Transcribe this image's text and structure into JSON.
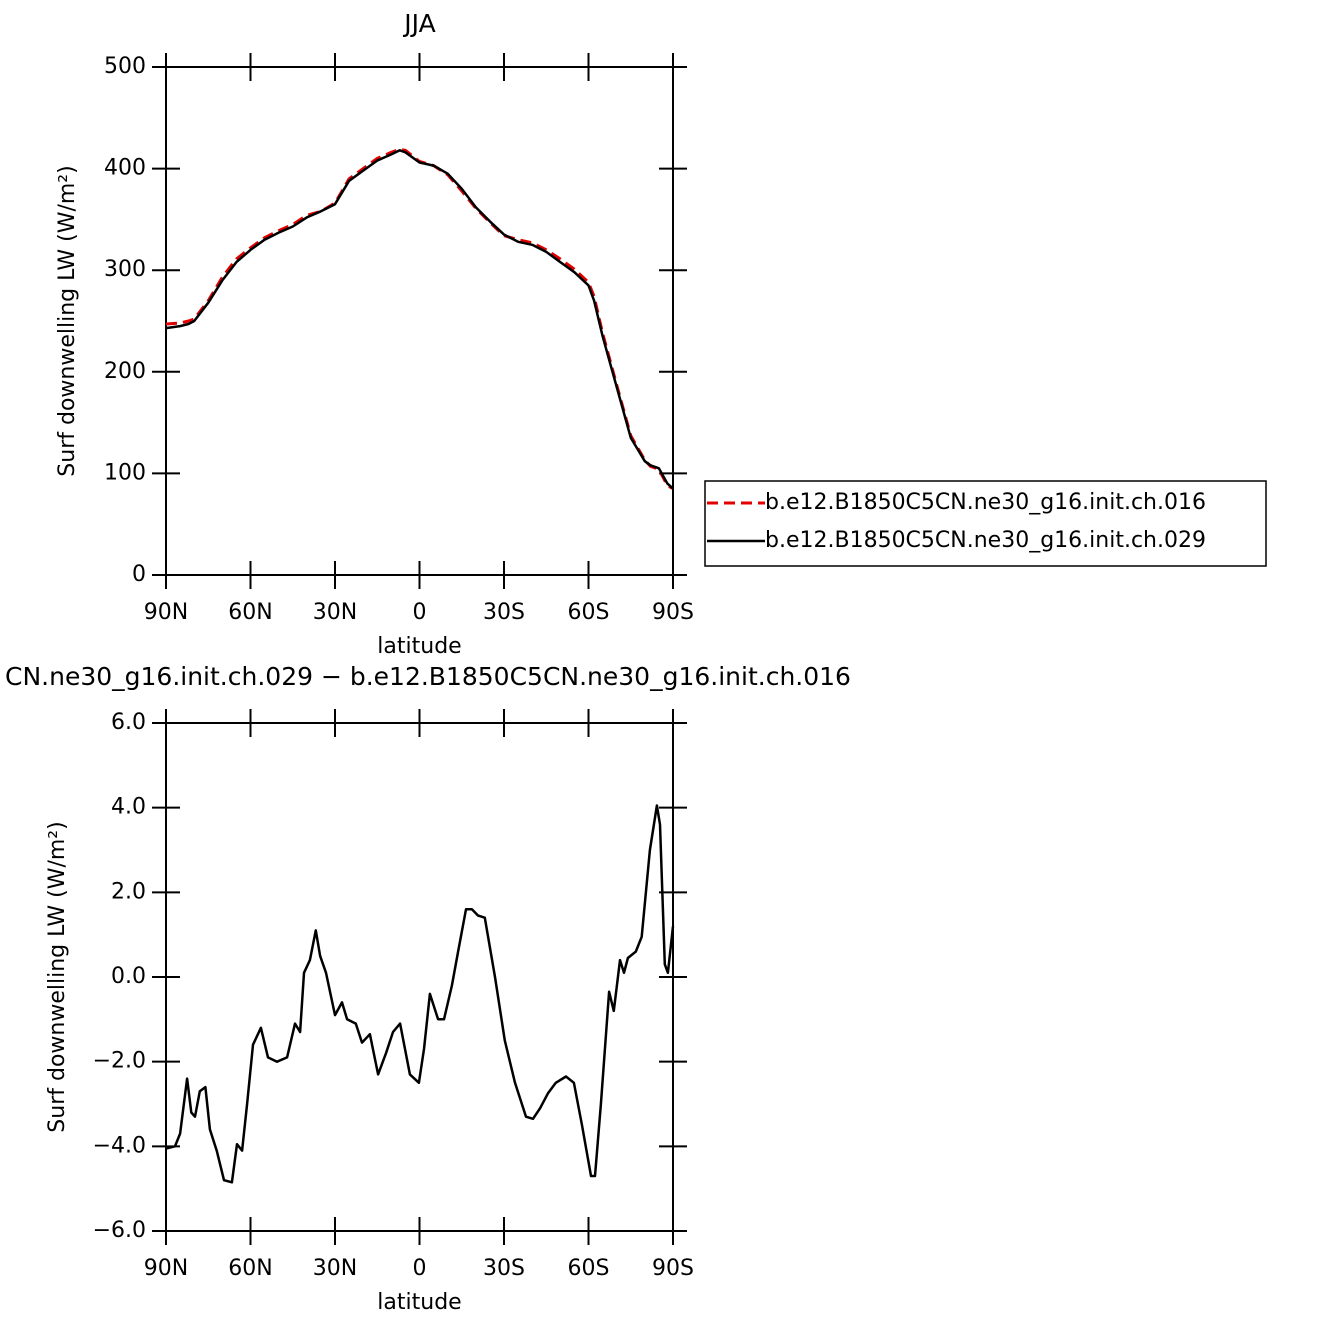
{
  "chart_data": [
    {
      "type": "line",
      "title": "JJA",
      "xlabel": "latitude",
      "ylabel": "Surf downwelling LW (W/m²)",
      "xlim": [
        90,
        -90
      ],
      "xticks": [
        {
          "value": 90,
          "label": "90N"
        },
        {
          "value": 60,
          "label": "60N"
        },
        {
          "value": 30,
          "label": "30N"
        },
        0,
        {
          "value": -30,
          "label": "30S"
        },
        {
          "value": -60,
          "label": "60S"
        },
        {
          "value": -90,
          "label": "90S"
        }
      ],
      "ylim": [
        0,
        500
      ],
      "yticks": [
        0,
        100,
        200,
        300,
        400,
        500
      ],
      "legend": "outside right",
      "x": [
        90,
        85,
        82,
        80,
        75,
        70,
        65,
        60,
        55,
        50,
        45,
        40,
        35,
        30,
        25,
        20,
        15,
        10,
        7,
        5,
        0,
        -5,
        -10,
        -15,
        -20,
        -25,
        -30,
        -35,
        -40,
        -45,
        -50,
        -55,
        -60,
        -62,
        -65,
        -70,
        -75,
        -80,
        -82,
        -85,
        -88,
        -90
      ],
      "series": [
        {
          "name": "b.e12.B1850C5CN.ne30_g16.init.ch.016",
          "color": "#e00000",
          "dashed": true,
          "values": [
            247,
            248,
            250,
            252,
            270,
            293,
            311,
            322,
            332,
            339,
            345,
            354,
            358,
            366,
            390,
            400,
            410,
            416,
            419,
            418,
            407,
            403,
            394,
            378,
            361,
            347,
            334,
            330,
            327,
            320,
            311,
            301,
            288,
            274,
            238,
            187,
            137,
            113,
            107,
            104,
            88,
            85
          ]
        },
        {
          "name": "b.e12.B1850C5CN.ne30_g16.init.ch.029",
          "color": "#000000",
          "dashed": false,
          "values": [
            243,
            245,
            247,
            250,
            268,
            290,
            308,
            320,
            330,
            337,
            343,
            352,
            358,
            365,
            388,
            398,
            408,
            414,
            418,
            416,
            406,
            403,
            395,
            380,
            362,
            348,
            335,
            328,
            325,
            318,
            308,
            298,
            285,
            270,
            235,
            185,
            135,
            112,
            108,
            105,
            90,
            85
          ]
        }
      ]
    },
    {
      "type": "line",
      "title": "CN.ne30_g16.init.ch.029 − b.e12.B1850C5CN.ne30_g16.init.ch.016",
      "xlabel": "latitude",
      "ylabel": "Surf downwelling LW (W/m²)",
      "xlim": [
        90,
        -90
      ],
      "xticks": [
        {
          "value": 90,
          "label": "90N"
        },
        {
          "value": 60,
          "label": "60N"
        },
        {
          "value": 30,
          "label": "30N"
        },
        0,
        {
          "value": -30,
          "label": "30S"
        },
        {
          "value": -60,
          "label": "60S"
        },
        {
          "value": -90,
          "label": "90S"
        }
      ],
      "ylim": [
        -6,
        6
      ],
      "yticks": [
        {
          "value": -6,
          "label": "−6.0"
        },
        {
          "value": -4,
          "label": "−4.0"
        },
        {
          "value": -2,
          "label": "−2.0"
        },
        {
          "value": 0,
          "label": "0.0"
        },
        {
          "value": 2,
          "label": "2.0"
        },
        {
          "value": 4,
          "label": "4.0"
        },
        {
          "value": 6,
          "label": "6.0"
        }
      ],
      "x": [
        90,
        86.8,
        85,
        82.5,
        81,
        79.7,
        78,
        76,
        74.4,
        72,
        69.4,
        66.6,
        64.8,
        63,
        61.2,
        59.1,
        56.3,
        53.8,
        50.6,
        47,
        44.2,
        42.4,
        41,
        38.9,
        36.8,
        35.3,
        33.2,
        30,
        27.5,
        25.7,
        22.6,
        20.4,
        17.6,
        14.7,
        11.9,
        9.4,
        6.9,
        3.4,
        0.2,
        -1.6,
        -3.7,
        -6.6,
        -8.7,
        -11.5,
        -13.7,
        -16.5,
        -18.6,
        -20.8,
        -23.2,
        -26.8,
        -30.3,
        -33.9,
        -37.8,
        -40.3,
        -42.8,
        -45.6,
        -48.4,
        -52,
        -54.8,
        -57.7,
        -60.9,
        -62.3,
        -64.4,
        -67.3,
        -69,
        -71.2,
        -72.6,
        -74,
        -76.8,
        -78.9,
        -81.8,
        -84.3,
        -85.4,
        -87.1,
        -88.2,
        -90
      ],
      "series": [
        {
          "color": "#000000",
          "dashed": false,
          "values": [
            -4.05,
            -4.0,
            -3.7,
            -2.4,
            -3.2,
            -3.3,
            -2.7,
            -2.6,
            -3.6,
            -4.1,
            -4.8,
            -4.85,
            -3.95,
            -4.1,
            -3.0,
            -1.6,
            -1.2,
            -1.9,
            -2.0,
            -1.9,
            -1.1,
            -1.3,
            0.1,
            0.4,
            1.1,
            0.5,
            0.1,
            -0.9,
            -0.6,
            -1.0,
            -1.1,
            -1.55,
            -1.35,
            -2.3,
            -1.8,
            -1.3,
            -1.1,
            -2.3,
            -2.5,
            -1.7,
            -0.4,
            -1.0,
            -1.0,
            -0.2,
            0.6,
            1.6,
            1.6,
            1.45,
            1.4,
            0.0,
            -1.5,
            -2.5,
            -3.3,
            -3.35,
            -3.1,
            -2.75,
            -2.5,
            -2.35,
            -2.5,
            -3.5,
            -4.7,
            -4.7,
            -3.0,
            -0.35,
            -0.8,
            0.4,
            0.1,
            0.45,
            0.6,
            0.95,
            3.0,
            4.05,
            3.6,
            0.3,
            0.1,
            1.2
          ]
        }
      ]
    }
  ]
}
